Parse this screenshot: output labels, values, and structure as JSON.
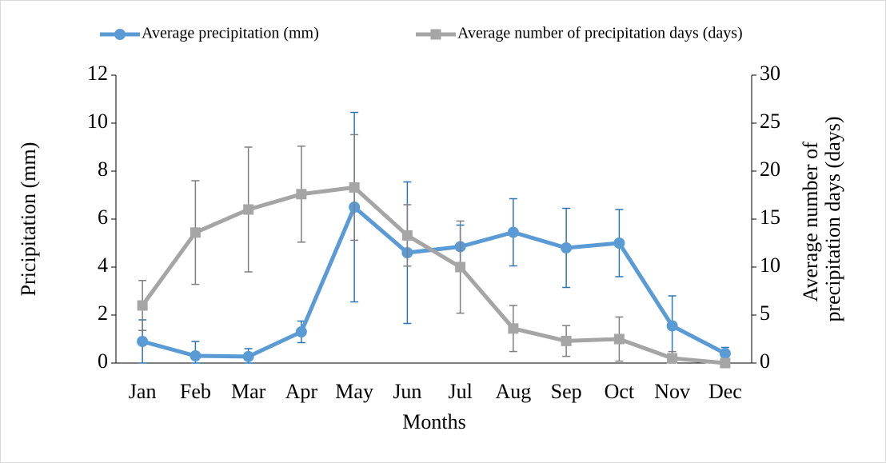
{
  "chart_data": {
    "type": "line",
    "categories": [
      "Jan",
      "Feb",
      "Mar",
      "Apr",
      "May",
      "Jun",
      "Jul",
      "Aug",
      "Sep",
      "Oct",
      "Nov",
      "Dec"
    ],
    "xlabel": "Months",
    "ylabel": "Pricipitation (mm)",
    "y2label": "Average number of precipitation days (days)",
    "ylim": [
      0,
      12
    ],
    "yticks": [
      0,
      2,
      4,
      6,
      8,
      10,
      12
    ],
    "y2lim": [
      0,
      30
    ],
    "y2ticks": [
      0,
      5,
      10,
      15,
      20,
      25,
      30
    ],
    "legend": "top",
    "series": [
      {
        "name": "Average precipitation (mm)",
        "color": "#5b9bd5",
        "error_color": "#2e75b6",
        "values": [
          0.9,
          0.3,
          0.27,
          1.3,
          6.5,
          4.6,
          4.85,
          5.45,
          4.8,
          5.0,
          1.55,
          0.4
        ],
        "errors": [
          0.9,
          0.6,
          0.33,
          0.45,
          3.95,
          2.95,
          0.9,
          1.4,
          1.65,
          1.4,
          1.25,
          0.25
        ]
      },
      {
        "name": "Average number of precipitation days (days)",
        "color": "#a5a5a5",
        "error_color": "#7f7f7f",
        "axis": "y2",
        "values": [
          6.0,
          13.6,
          16.0,
          17.6,
          18.3,
          13.3,
          10.0,
          3.6,
          2.3,
          2.5,
          0.5,
          0
        ],
        "errors": [
          2.6,
          5.4,
          6.5,
          5.0,
          5.5,
          3.2,
          4.8,
          2.4,
          1.6,
          2.3,
          0.7,
          0
        ]
      }
    ]
  }
}
